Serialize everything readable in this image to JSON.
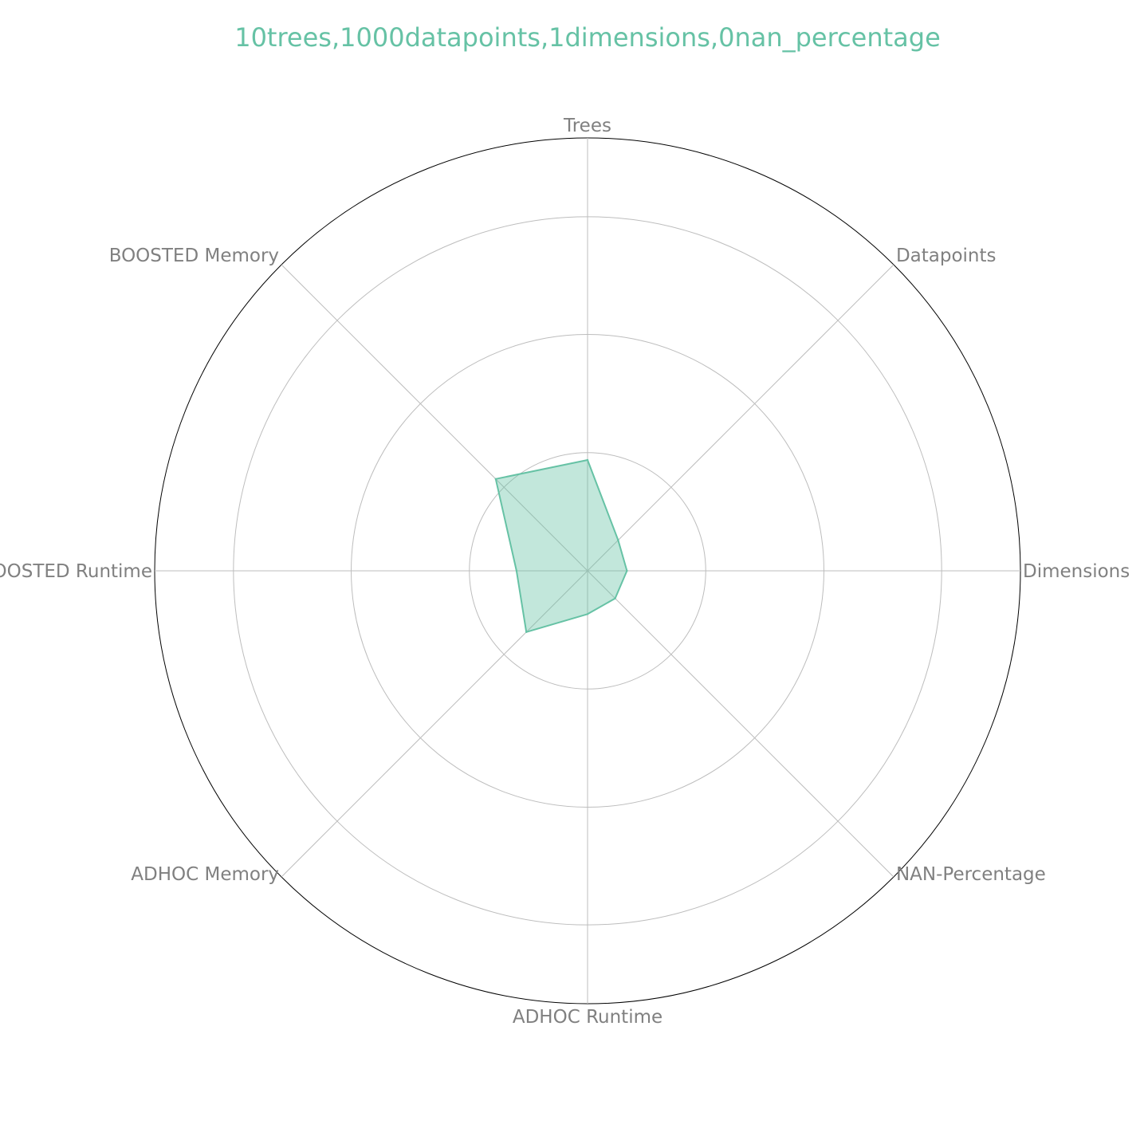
{
  "chart_data": {
    "type": "radar",
    "title": "10trees,1000datapoints,1dimensions,0nan_percentage",
    "axes": [
      "Trees",
      "Datapoints",
      "Dimensions",
      "NAN-Percentage",
      "ADHOC Runtime",
      "ADHOC Memory",
      "BOOSTED Runtime",
      "BOOSTED Memory"
    ],
    "rlim": [
      0,
      1
    ],
    "ring_values": [
      0.273,
      0.546,
      0.818,
      1.0
    ],
    "grid": true,
    "series": [
      {
        "values": [
          0.256,
          0.1,
          0.091,
          0.09,
          0.1,
          0.2,
          0.164,
          0.3
        ]
      }
    ],
    "colors": {
      "series": "#66c2a5",
      "title": "#66c2a5",
      "axis_label": "#808080",
      "grid": "#bdbdbd",
      "outer_ring": "#000000"
    }
  }
}
